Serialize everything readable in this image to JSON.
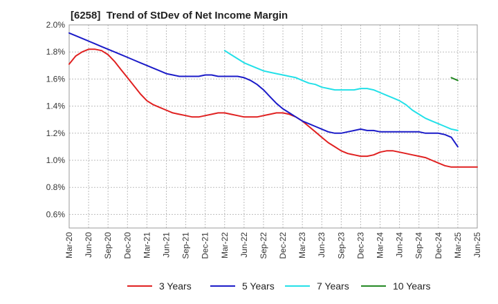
{
  "chart_data": {
    "type": "line",
    "title": "[6258]  Trend of StDev of Net Income Margin",
    "x_ticks": [
      "Mar-20",
      "Jun-20",
      "Sep-20",
      "Dec-20",
      "Mar-21",
      "Jun-21",
      "Sep-21",
      "Dec-21",
      "Mar-22",
      "Jun-22",
      "Sep-22",
      "Dec-22",
      "Mar-23",
      "Jun-23",
      "Sep-23",
      "Dec-23",
      "Mar-24",
      "Jun-24",
      "Sep-24",
      "Dec-24",
      "Mar-25",
      "Jun-25"
    ],
    "y_ticks": [
      "0.6%",
      "0.8%",
      "1.0%",
      "1.2%",
      "1.4%",
      "1.6%",
      "1.8%",
      "2.0%"
    ],
    "ylim": [
      0.5,
      2.0
    ],
    "y_unit": "%",
    "grid": true,
    "legend_position": "bottom",
    "series": [
      {
        "name": "3 Years",
        "color": "#e02020",
        "start_index": 0,
        "values": [
          1.71,
          1.77,
          1.8,
          1.82,
          1.82,
          1.81,
          1.78,
          1.73,
          1.67,
          1.61,
          1.55,
          1.49,
          1.44,
          1.41,
          1.39,
          1.37,
          1.35,
          1.34,
          1.33,
          1.32,
          1.32,
          1.33,
          1.34,
          1.35,
          1.35,
          1.34,
          1.33,
          1.32,
          1.32,
          1.32,
          1.33,
          1.34,
          1.35,
          1.35,
          1.34,
          1.32,
          1.29,
          1.25,
          1.21,
          1.17,
          1.13,
          1.1,
          1.07,
          1.05,
          1.04,
          1.03,
          1.03,
          1.04,
          1.06,
          1.07,
          1.07,
          1.06,
          1.05,
          1.04,
          1.03,
          1.02,
          1.0,
          0.98,
          0.96,
          0.95,
          0.95,
          0.95,
          0.95,
          0.95
        ]
      },
      {
        "name": "5 Years",
        "color": "#1a1ac8",
        "start_index": 0,
        "values": [
          1.94,
          1.92,
          1.9,
          1.88,
          1.86,
          1.84,
          1.82,
          1.8,
          1.78,
          1.76,
          1.74,
          1.72,
          1.7,
          1.68,
          1.66,
          1.64,
          1.63,
          1.62,
          1.62,
          1.62,
          1.62,
          1.63,
          1.63,
          1.62,
          1.62,
          1.62,
          1.62,
          1.61,
          1.59,
          1.56,
          1.52,
          1.47,
          1.42,
          1.38,
          1.35,
          1.32,
          1.29,
          1.27,
          1.25,
          1.23,
          1.21,
          1.2,
          1.2,
          1.21,
          1.22,
          1.23,
          1.22,
          1.22,
          1.21,
          1.21,
          1.21,
          1.21,
          1.21,
          1.21,
          1.21,
          1.2,
          1.2,
          1.2,
          1.19,
          1.17,
          1.1
        ]
      },
      {
        "name": "7 Years",
        "color": "#22e0e8",
        "start_index": 24,
        "values": [
          1.81,
          1.78,
          1.75,
          1.72,
          1.7,
          1.68,
          1.66,
          1.65,
          1.64,
          1.63,
          1.62,
          1.61,
          1.59,
          1.57,
          1.56,
          1.54,
          1.53,
          1.52,
          1.52,
          1.52,
          1.52,
          1.53,
          1.53,
          1.52,
          1.5,
          1.48,
          1.46,
          1.44,
          1.41,
          1.37,
          1.34,
          1.31,
          1.29,
          1.27,
          1.25,
          1.23,
          1.22
        ]
      },
      {
        "name": "10 Years",
        "color": "#228822",
        "start_index": 59,
        "values": [
          1.61,
          1.59
        ]
      }
    ]
  }
}
